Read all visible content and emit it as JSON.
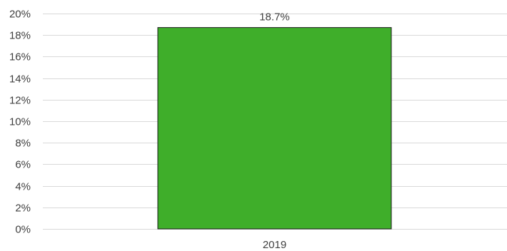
{
  "chart_data": {
    "type": "bar",
    "categories": [
      "2019"
    ],
    "values": [
      18.7
    ],
    "data_labels": [
      "18.7%"
    ],
    "ylim": [
      0,
      20
    ],
    "y_ticks": [
      0,
      2,
      4,
      6,
      8,
      10,
      12,
      14,
      16,
      18,
      20
    ],
    "y_tick_labels": [
      "0%",
      "2%",
      "4%",
      "6%",
      "8%",
      "10%",
      "12%",
      "14%",
      "16%",
      "18%",
      "20%"
    ],
    "bar_color": "#3fae2a",
    "grid": true,
    "legend": "none"
  }
}
